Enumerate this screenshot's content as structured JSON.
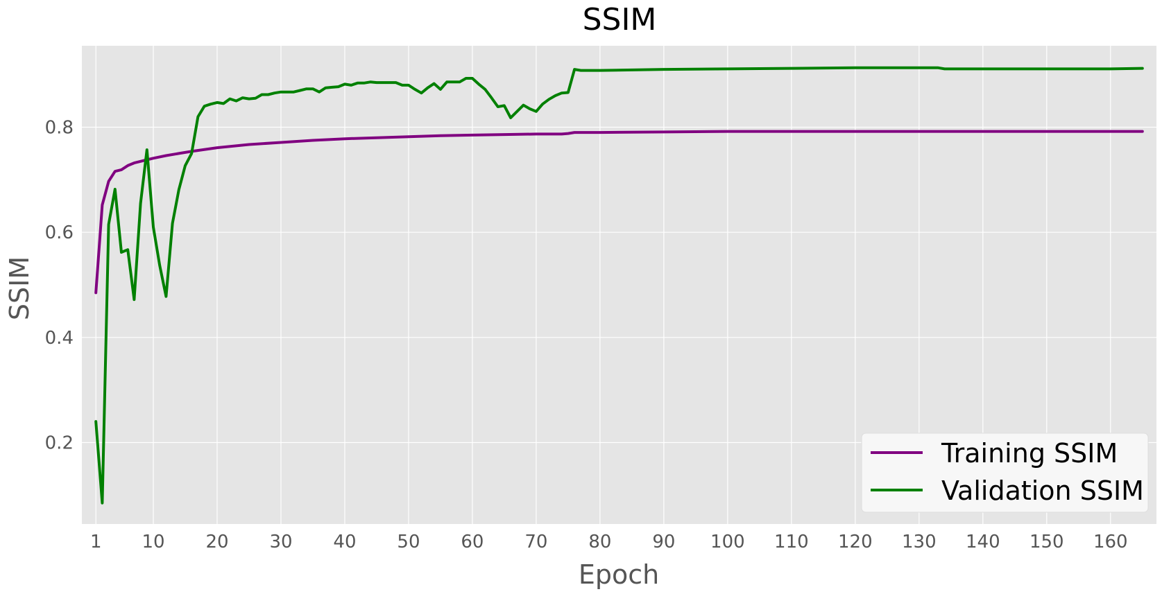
{
  "chart_data": {
    "type": "line",
    "title": "SSIM",
    "xlabel": "Epoch",
    "ylabel": "SSIM",
    "xlim": [
      -1.2,
      167.2
    ],
    "ylim": [
      0.045,
      0.955
    ],
    "xticks": [
      1,
      10,
      20,
      30,
      40,
      50,
      60,
      70,
      80,
      90,
      100,
      110,
      120,
      130,
      140,
      150,
      160
    ],
    "yticks": [
      0.2,
      0.4,
      0.6,
      0.8
    ],
    "ytick_labels": [
      "0.2",
      "0.4",
      "0.6",
      "0.8"
    ],
    "grid": true,
    "legend_position": "bottom-right",
    "background": "#e5e5e5",
    "series": [
      {
        "name": "Training SSIM",
        "color": "#800080",
        "x": [
          1,
          2,
          3,
          4,
          5,
          6,
          7,
          8,
          9,
          10,
          12,
          14,
          16,
          20,
          25,
          30,
          35,
          40,
          45,
          50,
          55,
          60,
          65,
          70,
          74,
          75,
          76,
          80,
          90,
          100,
          110,
          120,
          130,
          140,
          150,
          160,
          165
        ],
        "y": [
          0.485,
          0.652,
          0.697,
          0.716,
          0.719,
          0.727,
          0.732,
          0.735,
          0.738,
          0.741,
          0.746,
          0.75,
          0.754,
          0.761,
          0.767,
          0.771,
          0.775,
          0.778,
          0.78,
          0.782,
          0.784,
          0.785,
          0.786,
          0.787,
          0.787,
          0.788,
          0.79,
          0.79,
          0.791,
          0.792,
          0.792,
          0.792,
          0.792,
          0.792,
          0.792,
          0.792,
          0.792
        ]
      },
      {
        "name": "Validation SSIM",
        "color": "#008000",
        "x": [
          1,
          2,
          3,
          4,
          5,
          6,
          7,
          8,
          9,
          10,
          11,
          12,
          13,
          14,
          15,
          16,
          17,
          18,
          19,
          20,
          21,
          22,
          23,
          24,
          25,
          26,
          27,
          28,
          29,
          30,
          31,
          32,
          33,
          34,
          35,
          36,
          37,
          38,
          39,
          40,
          41,
          42,
          43,
          44,
          45,
          46,
          47,
          48,
          49,
          50,
          51,
          52,
          53,
          54,
          55,
          56,
          57,
          58,
          59,
          60,
          61,
          62,
          63,
          64,
          65,
          66,
          67,
          68,
          69,
          70,
          71,
          72,
          73,
          74,
          75,
          76,
          77,
          80,
          90,
          100,
          110,
          120,
          130,
          133,
          134,
          140,
          150,
          160,
          165
        ],
        "y": [
          0.24,
          0.085,
          0.615,
          0.682,
          0.562,
          0.567,
          0.472,
          0.655,
          0.757,
          0.61,
          0.537,
          0.478,
          0.617,
          0.681,
          0.727,
          0.75,
          0.82,
          0.84,
          0.844,
          0.847,
          0.845,
          0.854,
          0.85,
          0.856,
          0.854,
          0.855,
          0.862,
          0.862,
          0.865,
          0.867,
          0.867,
          0.867,
          0.87,
          0.873,
          0.873,
          0.867,
          0.875,
          0.876,
          0.877,
          0.882,
          0.88,
          0.884,
          0.884,
          0.886,
          0.885,
          0.885,
          0.885,
          0.885,
          0.88,
          0.88,
          0.872,
          0.865,
          0.875,
          0.883,
          0.872,
          0.886,
          0.886,
          0.886,
          0.893,
          0.893,
          0.882,
          0.872,
          0.856,
          0.839,
          0.841,
          0.818,
          0.83,
          0.842,
          0.835,
          0.83,
          0.844,
          0.853,
          0.86,
          0.865,
          0.866,
          0.91,
          0.908,
          0.908,
          0.91,
          0.911,
          0.912,
          0.913,
          0.913,
          0.913,
          0.911,
          0.911,
          0.911,
          0.911,
          0.912
        ]
      }
    ]
  }
}
